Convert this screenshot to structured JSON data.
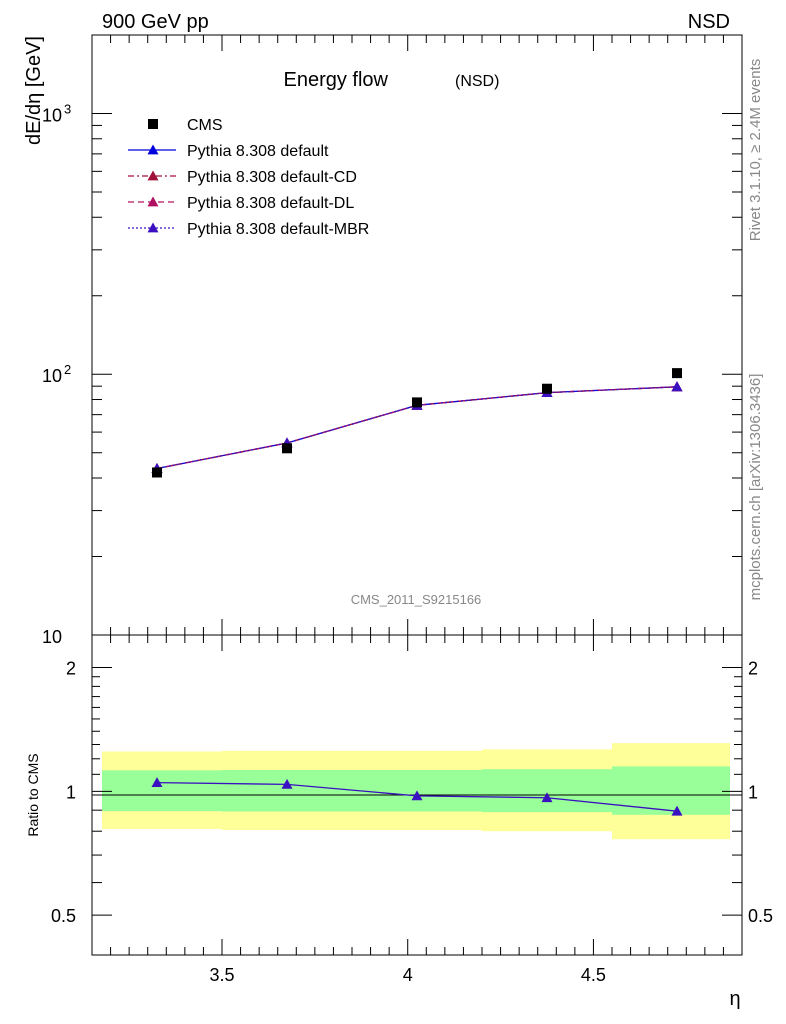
{
  "header": {
    "left": "900 GeV pp",
    "right": "NSD"
  },
  "side": {
    "rivet": "Rivet 3.1.10, ≥ 2.4M events",
    "mcplots": "mcplots.cern.ch [arXiv:1306.3436]"
  },
  "chart_data": [
    {
      "type": "scatter",
      "title": "Energy flow",
      "title_suffix": "(NSD)",
      "ylabel": "dE/dη [GeV]",
      "xlabel": "η",
      "yscale": "log",
      "ylim": [
        10,
        2000
      ],
      "xlim": [
        3.15,
        4.9
      ],
      "watermark": "CMS_2011_S9215166",
      "y_ticklabels": [
        {
          "value": 1000,
          "label": "10",
          "sup": "3"
        },
        {
          "value": 100,
          "label": "10",
          "sup": "2"
        },
        {
          "value": 10,
          "label": "10",
          "sup": ""
        }
      ],
      "legend_position": "top-left",
      "series": [
        {
          "name": "CMS",
          "style": "marker",
          "marker": "square",
          "color": "#000000",
          "x": [
            3.325,
            3.675,
            4.025,
            4.375,
            4.725
          ],
          "y": [
            42,
            52,
            78,
            88,
            101
          ]
        },
        {
          "name": "Pythia 8.308 default",
          "style": "solid",
          "marker": "triangle",
          "color": "#0000dd",
          "x": [
            3.325,
            3.675,
            4.025,
            4.375,
            4.725
          ],
          "y": [
            43.5,
            54.5,
            76,
            85,
            89.5
          ]
        },
        {
          "name": "Pythia 8.308 default-CD",
          "style": "dashdot",
          "marker": "triangle",
          "color": "#a0103a",
          "x": [
            3.325,
            3.675,
            4.025,
            4.375,
            4.725
          ],
          "y": [
            43.5,
            54.5,
            76,
            85,
            89.5
          ]
        },
        {
          "name": "Pythia 8.308 default-DL",
          "style": "dashed",
          "marker": "triangle",
          "color": "#b01060",
          "x": [
            3.325,
            3.675,
            4.025,
            4.375,
            4.725
          ],
          "y": [
            43.5,
            54.5,
            76,
            85,
            89.5
          ]
        },
        {
          "name": "Pythia 8.308 default-MBR",
          "style": "dotted",
          "marker": "triangle",
          "color": "#3a10c0",
          "x": [
            3.325,
            3.675,
            4.025,
            4.375,
            4.725
          ],
          "y": [
            43.5,
            54.5,
            76,
            85,
            89.5
          ]
        }
      ]
    },
    {
      "type": "line",
      "ylabel": "Ratio to CMS",
      "xlabel": "η",
      "yscale": "log",
      "ylim": [
        0.4,
        2.4
      ],
      "xlim": [
        3.15,
        4.9
      ],
      "x_ticklabels": [
        "3.5",
        "4",
        "4.5"
      ],
      "x_ticks": [
        3.5,
        4.0,
        4.5
      ],
      "y_ticklabels": [
        "2",
        "1",
        "0.5"
      ],
      "y_ticks": [
        2,
        1,
        0.5
      ],
      "bands": {
        "edges": [
          3.15,
          3.5,
          3.85,
          4.2,
          4.55,
          4.9
        ],
        "yellow_lo": [
          0.81,
          0.805,
          0.805,
          0.8,
          0.765
        ],
        "yellow_hi": [
          1.25,
          1.255,
          1.255,
          1.265,
          1.31
        ],
        "green_lo": [
          0.895,
          0.893,
          0.893,
          0.89,
          0.877
        ],
        "green_hi": [
          1.125,
          1.127,
          1.127,
          1.132,
          1.15
        ],
        "yellow_color": "#ffff99",
        "green_color": "#99ff99"
      },
      "series": [
        {
          "name": "Pythia 8.308 default",
          "color": "#3a10c0",
          "x": [
            3.325,
            3.675,
            4.025,
            4.375,
            4.725
          ],
          "y": [
            1.05,
            1.04,
            0.975,
            0.965,
            0.895
          ]
        }
      ]
    }
  ]
}
